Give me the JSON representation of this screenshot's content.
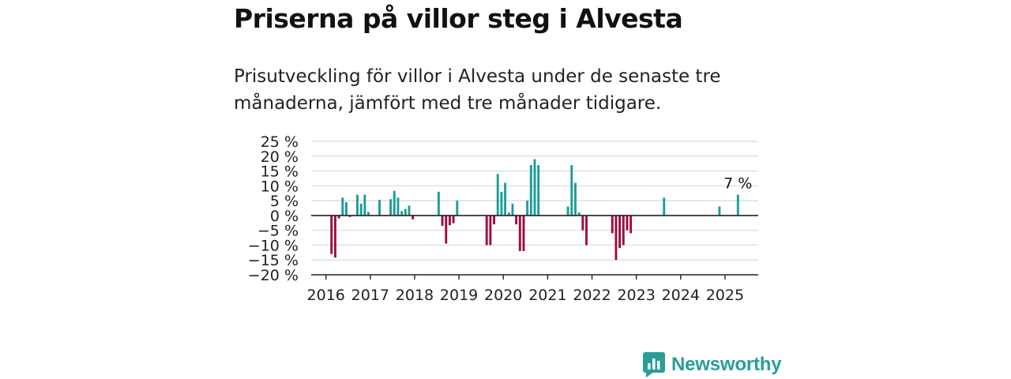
{
  "title": "Priserna på villor steg i Alvesta",
  "subtitle": "Prisutveckling för villor i Alvesta under de senaste tre månaderna, jämfört med tre månader tidigare.",
  "brand": {
    "name": "Newsworthy",
    "color": "#2a9d97"
  },
  "colors": {
    "positive": "#1a9e96",
    "negative": "#9e0b40",
    "grid": "#d9d9d9",
    "axis": "#222222"
  },
  "chart_data": {
    "type": "bar",
    "ylim": [
      -20,
      25
    ],
    "yticks": [
      -20,
      -15,
      -10,
      -5,
      0,
      5,
      10,
      15,
      20,
      25
    ],
    "ytick_labels": [
      "−20 %",
      "−15 %",
      "−10 %",
      "−5 %",
      "0 %",
      "5 %",
      "10 %",
      "15 %",
      "20 %",
      "25 %"
    ],
    "xlim": [
      "2015-09",
      "2025-10"
    ],
    "xticks": [
      "2016",
      "2017",
      "2018",
      "2019",
      "2020",
      "2021",
      "2022",
      "2023",
      "2024",
      "2025"
    ],
    "grid": true,
    "annotation": {
      "text": "7 %",
      "x": "2025-04",
      "y": 7
    },
    "x": [
      "2016-02",
      "2016-03",
      "2016-04",
      "2016-05",
      "2016-06",
      "2016-07",
      "2016-09",
      "2016-10",
      "2016-11",
      "2016-12",
      "2017-03",
      "2017-06",
      "2017-07",
      "2017-08",
      "2017-09",
      "2017-10",
      "2017-11",
      "2017-12",
      "2018-07",
      "2018-08",
      "2018-09",
      "2018-10",
      "2018-11",
      "2018-12",
      "2019-08",
      "2019-09",
      "2019-10",
      "2019-11",
      "2019-12",
      "2020-01",
      "2020-02",
      "2020-03",
      "2020-04",
      "2020-05",
      "2020-06",
      "2020-07",
      "2020-08",
      "2020-09",
      "2020-10",
      "2021-06",
      "2021-07",
      "2021-08",
      "2021-09",
      "2021-10",
      "2021-11",
      "2022-06",
      "2022-07",
      "2022-08",
      "2022-09",
      "2022-10",
      "2022-11",
      "2023-08",
      "2024-11",
      "2025-04"
    ],
    "values": [
      -13,
      -14.2,
      -1,
      6,
      4.5,
      -0.5,
      7,
      4,
      7,
      1.2,
      5.3,
      5.5,
      8.3,
      6,
      1.5,
      2.2,
      3.3,
      -1.3,
      8,
      -3.5,
      -9.5,
      -3.3,
      -2.6,
      5,
      -10,
      -10,
      -3,
      14,
      8,
      11,
      1,
      4,
      -3,
      -12,
      -12,
      5,
      17,
      19,
      17,
      3,
      17,
      11,
      1,
      -5,
      -10,
      -6,
      -15,
      -11,
      -10,
      -5,
      -6,
      6,
      3,
      7
    ]
  }
}
